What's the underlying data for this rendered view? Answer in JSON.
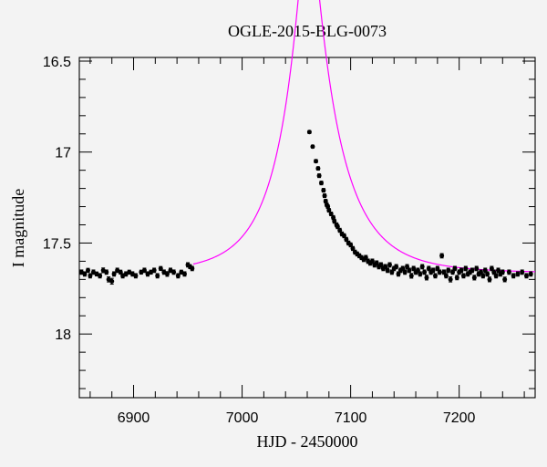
{
  "chart_data": {
    "type": "scatter",
    "title": "OGLE-2015-BLG-0073",
    "xlabel": "HJD - 2450000",
    "ylabel": "I magnitude",
    "xlim": [
      6850,
      7270
    ],
    "ylim": [
      18.35,
      16.48
    ],
    "y_inverted": true,
    "x_ticks": [
      6900,
      7000,
      7100,
      7200
    ],
    "x_tick_labels": [
      "6900",
      "7000",
      "7100",
      "7200"
    ],
    "y_ticks": [
      16.5,
      17,
      17.5,
      18
    ],
    "y_tick_labels": [
      "16.5",
      "17",
      "17.5",
      "18"
    ],
    "grid": false,
    "colors": {
      "model": "#ff00ff",
      "points": "#000000",
      "background": "#f3f3f3"
    },
    "model": {
      "name": "",
      "type": "point-lens microlensing curve",
      "t0": 7061,
      "tE": 54,
      "u0": 0.17,
      "baseline_mag": 17.665
    },
    "series": [
      {
        "name": "",
        "x": [
          6852,
          6855,
          6858,
          6860,
          6863,
          6866,
          6869,
          6872,
          6875,
          6877,
          6880,
          6882,
          6885,
          6888,
          6890,
          6893,
          6896,
          6899,
          6902,
          6907,
          6910,
          6913,
          6916,
          6919,
          6922,
          6925,
          6928,
          6931,
          6934,
          6937,
          6941,
          6944,
          6947,
          6950,
          6952,
          6954,
          7062,
          7065,
          7068,
          7070,
          7071,
          7073,
          7075,
          7076,
          7077,
          7078,
          7079,
          7080,
          7082,
          7084,
          7085,
          7087,
          7088,
          7090,
          7092,
          7094,
          7096,
          7098,
          7100,
          7102,
          7104,
          7106,
          7108,
          7110,
          7112,
          7114,
          7116,
          7118,
          7120,
          7122,
          7124,
          7126,
          7128,
          7130,
          7132,
          7134,
          7136,
          7138,
          7140,
          7142,
          7144,
          7146,
          7148,
          7150,
          7152,
          7154,
          7156,
          7158,
          7160,
          7162,
          7164,
          7166,
          7168,
          7170,
          7172,
          7174,
          7176,
          7178,
          7180,
          7182,
          7184,
          7186,
          7188,
          7190,
          7192,
          7194,
          7196,
          7198,
          7200,
          7202,
          7204,
          7206,
          7208,
          7210,
          7212,
          7214,
          7216,
          7218,
          7220,
          7222,
          7224,
          7226,
          7228,
          7230,
          7232,
          7234,
          7236,
          7238,
          7240,
          7242,
          7246,
          7250,
          7254,
          7258,
          7262,
          7266
        ],
        "y": [
          17.66,
          17.67,
          17.65,
          17.68,
          17.66,
          17.67,
          17.68,
          17.65,
          17.66,
          17.7,
          17.71,
          17.67,
          17.65,
          17.66,
          17.68,
          17.67,
          17.66,
          17.67,
          17.68,
          17.66,
          17.65,
          17.67,
          17.66,
          17.65,
          17.68,
          17.64,
          17.66,
          17.67,
          17.65,
          17.66,
          17.68,
          17.66,
          17.67,
          17.62,
          17.63,
          17.64,
          16.89,
          16.97,
          17.05,
          17.09,
          17.13,
          17.17,
          17.21,
          17.24,
          17.27,
          17.29,
          17.3,
          17.32,
          17.34,
          17.36,
          17.38,
          17.4,
          17.41,
          17.43,
          17.45,
          17.46,
          17.48,
          17.5,
          17.51,
          17.53,
          17.55,
          17.56,
          17.57,
          17.58,
          17.59,
          17.58,
          17.6,
          17.61,
          17.6,
          17.62,
          17.61,
          17.63,
          17.62,
          17.64,
          17.63,
          17.65,
          17.62,
          17.66,
          17.64,
          17.63,
          17.67,
          17.65,
          17.64,
          17.66,
          17.63,
          17.65,
          17.68,
          17.64,
          17.66,
          17.65,
          17.67,
          17.63,
          17.66,
          17.69,
          17.64,
          17.66,
          17.65,
          17.68,
          17.64,
          17.66,
          17.57,
          17.66,
          17.68,
          17.65,
          17.7,
          17.66,
          17.64,
          17.69,
          17.66,
          17.65,
          17.68,
          17.64,
          17.67,
          17.66,
          17.65,
          17.69,
          17.64,
          17.67,
          17.66,
          17.68,
          17.65,
          17.67,
          17.7,
          17.64,
          17.66,
          17.68,
          17.65,
          17.67,
          17.66,
          17.7,
          17.66,
          17.68,
          17.67,
          17.66,
          17.68,
          17.67
        ],
        "err": [
          0.012,
          0.012,
          0.011,
          0.012,
          0.012,
          0.011,
          0.012,
          0.013,
          0.012,
          0.014,
          0.016,
          0.012,
          0.012,
          0.011,
          0.012,
          0.012,
          0.011,
          0.012,
          0.012,
          0.011,
          0.012,
          0.012,
          0.011,
          0.012,
          0.012,
          0.011,
          0.012,
          0.013,
          0.012,
          0.012,
          0.012,
          0.011,
          0.012,
          0.012,
          0.011,
          0.012,
          0.008,
          0.008,
          0.009,
          0.009,
          0.01,
          0.01,
          0.01,
          0.01,
          0.01,
          0.01,
          0.01,
          0.01,
          0.01,
          0.011,
          0.011,
          0.011,
          0.011,
          0.011,
          0.011,
          0.011,
          0.011,
          0.011,
          0.011,
          0.011,
          0.011,
          0.011,
          0.011,
          0.011,
          0.012,
          0.012,
          0.012,
          0.012,
          0.012,
          0.012,
          0.012,
          0.012,
          0.012,
          0.012,
          0.012,
          0.012,
          0.012,
          0.012,
          0.012,
          0.012,
          0.012,
          0.012,
          0.012,
          0.012,
          0.012,
          0.012,
          0.013,
          0.012,
          0.012,
          0.012,
          0.012,
          0.012,
          0.012,
          0.013,
          0.012,
          0.012,
          0.012,
          0.012,
          0.012,
          0.012,
          0.012,
          0.012,
          0.012,
          0.012,
          0.014,
          0.012,
          0.012,
          0.012,
          0.012,
          0.012,
          0.012,
          0.012,
          0.012,
          0.012,
          0.012,
          0.013,
          0.012,
          0.012,
          0.012,
          0.012,
          0.012,
          0.012,
          0.013,
          0.012,
          0.012,
          0.012,
          0.012,
          0.012,
          0.012,
          0.013,
          0.012,
          0.012,
          0.012,
          0.012,
          0.012,
          0.012
        ]
      }
    ]
  }
}
